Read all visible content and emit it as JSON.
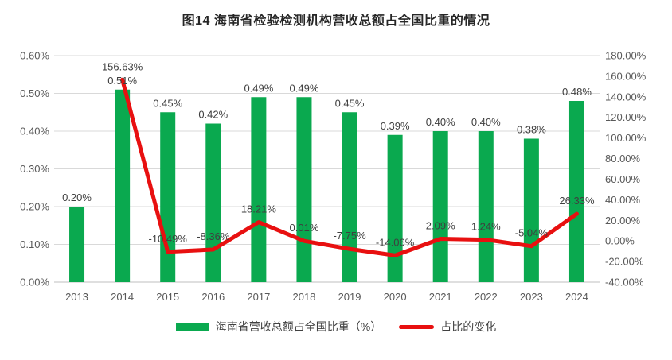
{
  "title": "图14 海南省检验检测机构营收总额占全国比重的情况",
  "legend": {
    "bar_label": "海南省营收总额占全国比重（%）",
    "line_label": "占比的变化"
  },
  "colors": {
    "bar": "#0aa94f",
    "line": "#e81010",
    "grid": "#d9d9d9",
    "axis_line": "#bfbfbf",
    "tick_text": "#595959",
    "data_label": "#3f3f3f",
    "title_text": "#262626"
  },
  "chart_data": {
    "type": "bar",
    "subtype": "combo-bar-line-dual-axis",
    "title": "图14 海南省检验检测机构营收总额占全国比重的情况",
    "categories": [
      "2013",
      "2014",
      "2015",
      "2016",
      "2017",
      "2018",
      "2019",
      "2020",
      "2021",
      "2022",
      "2023",
      "2024"
    ],
    "series": [
      {
        "name": "海南省营收总额占全国比重（%）",
        "type": "bar",
        "axis": "left",
        "values": [
          0.2,
          0.51,
          0.45,
          0.42,
          0.49,
          0.49,
          0.45,
          0.39,
          0.4,
          0.4,
          0.38,
          0.48
        ],
        "labels": [
          "0.20%",
          "0.51%",
          "0.45%",
          "0.42%",
          "0.49%",
          "0.49%",
          "0.45%",
          "0.39%",
          "0.40%",
          "0.40%",
          "0.38%",
          "0.48%"
        ]
      },
      {
        "name": "占比的变化",
        "type": "line",
        "axis": "right",
        "values": [
          null,
          156.63,
          -10.49,
          -8.36,
          18.21,
          0.01,
          -7.75,
          -14.06,
          2.09,
          1.24,
          -5.04,
          26.33
        ],
        "labels": [
          null,
          "156.63%",
          "-10.49%",
          "-8.36%",
          "18.21%",
          "0.01%",
          "-7.75%",
          "-14.06%",
          "2.09%",
          "1.24%",
          "-5.04%",
          "26.33%"
        ]
      }
    ],
    "left_axis": {
      "min": 0,
      "max": 0.6,
      "tick_step": 0.1,
      "tick_labels": [
        "0.00%",
        "0.10%",
        "0.20%",
        "0.30%",
        "0.40%",
        "0.50%",
        "0.60%"
      ]
    },
    "right_axis": {
      "min": -40,
      "max": 180,
      "tick_step": 20,
      "tick_labels": [
        "-40.00%",
        "-20.00%",
        "0.00%",
        "20.00%",
        "40.00%",
        "60.00%",
        "80.00%",
        "100.00%",
        "120.00%",
        "140.00%",
        "160.00%",
        "180.00%"
      ]
    },
    "grid": true,
    "legend_position": "bottom"
  }
}
